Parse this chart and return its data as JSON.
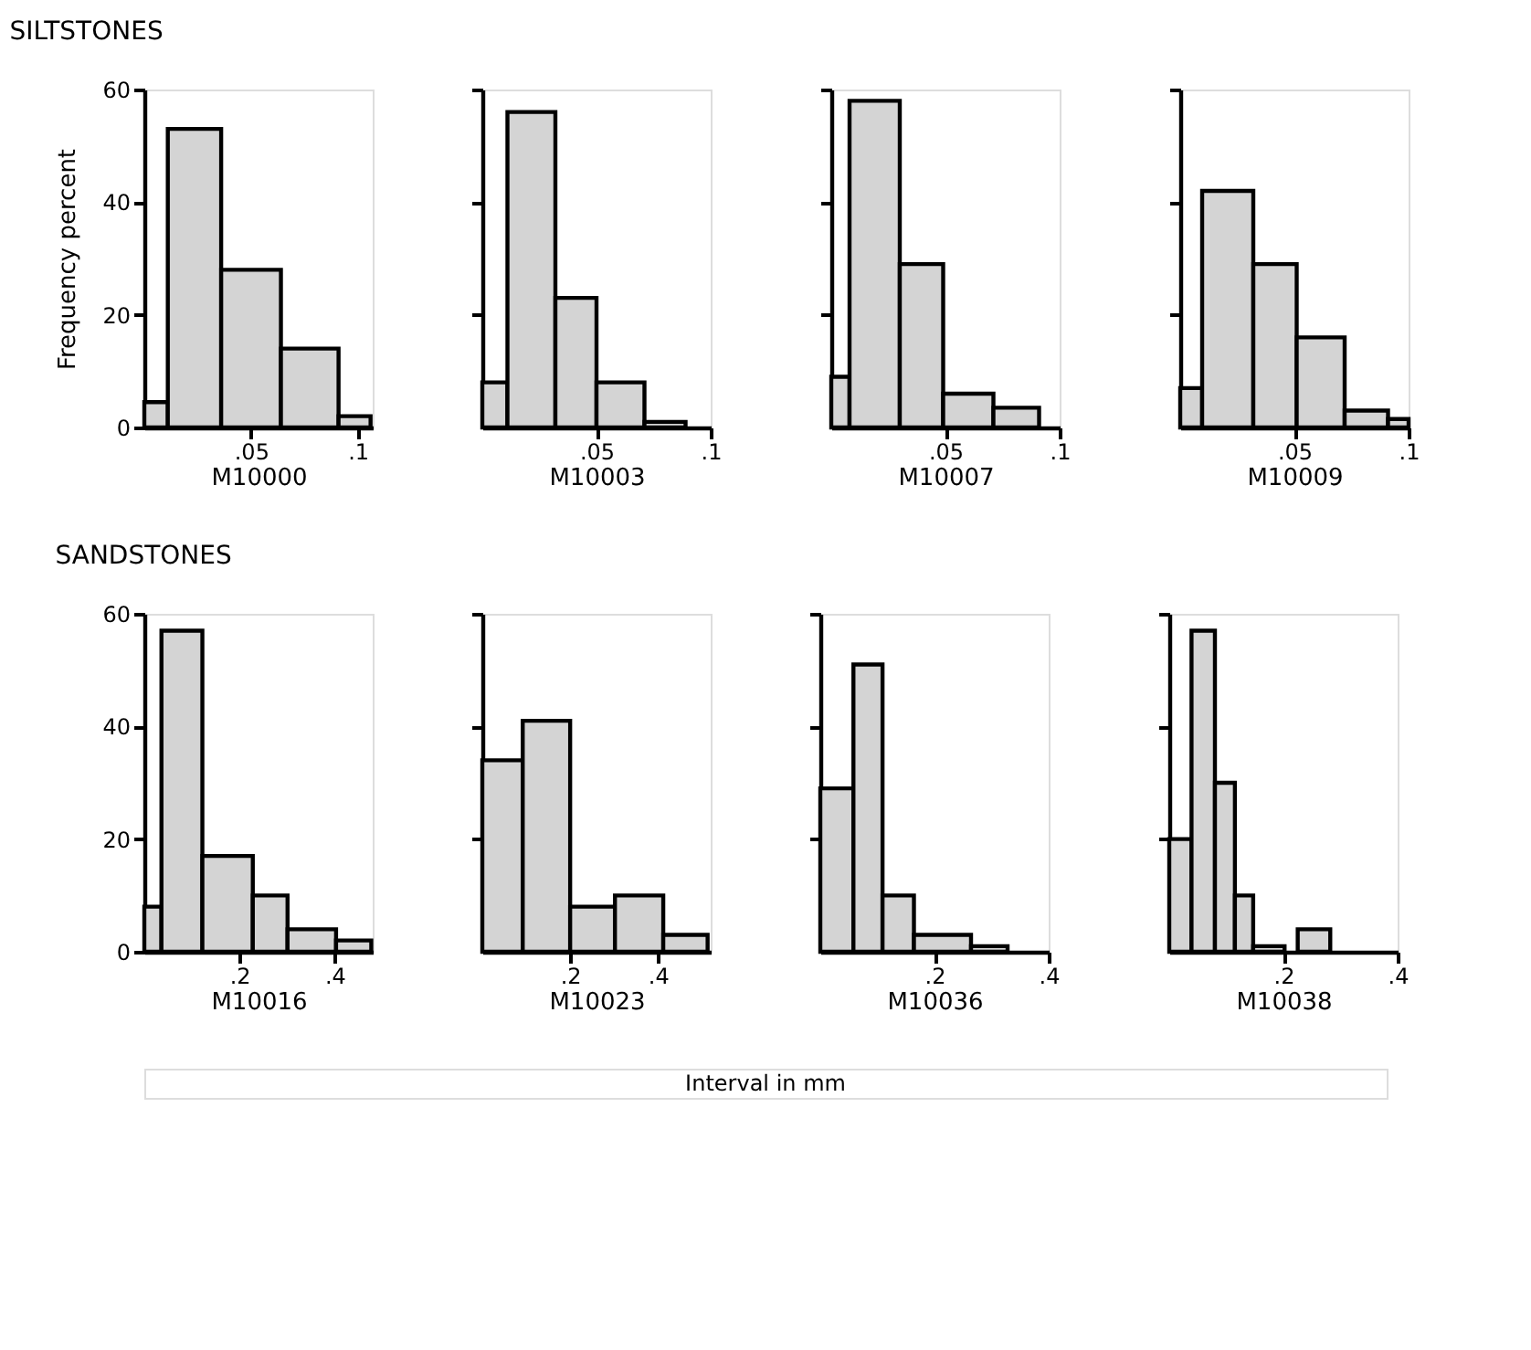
{
  "chart_data": [
    {
      "type": "histogram",
      "title": "SILTSTONES",
      "ylabel": "Frequency percent",
      "xlabel": "M10000",
      "bins": [
        0,
        0.011,
        0.036,
        0.064,
        0.091,
        0.106
      ],
      "values": [
        4.5,
        53,
        28,
        14,
        2
      ],
      "color": "#d4d4d4",
      "xlim": [
        0,
        0.107
      ],
      "xticks": [
        {
          "value": 0.05,
          "label": ".05"
        },
        {
          "value": 0.1,
          "label": ".1"
        }
      ],
      "ylim": [
        0,
        60
      ],
      "yticks": [
        0,
        20,
        40,
        60
      ],
      "grid": false
    },
    {
      "type": "histogram",
      "xlabel": "M10003",
      "bins": [
        0,
        0.011,
        0.032,
        0.05,
        0.071,
        0.089
      ],
      "values": [
        8,
        56,
        23,
        8,
        1
      ],
      "color": "#d4d4d4",
      "xlim": [
        0,
        0.1
      ],
      "xticks": [
        {
          "value": 0.05,
          "label": ".05"
        },
        {
          "value": 0.1,
          "label": ".1"
        }
      ],
      "ylim": [
        0,
        60
      ],
      "yticks": [
        20,
        40,
        60
      ],
      "tick_labels": "x",
      "grid": false
    },
    {
      "type": "histogram",
      "xlabel": "M10007",
      "bins": [
        0,
        0.008,
        0.03,
        0.049,
        0.071,
        0.091
      ],
      "values": [
        9,
        58,
        29,
        6,
        3.5
      ],
      "color": "#d4d4d4",
      "xlim": [
        0,
        0.1
      ],
      "xticks": [
        {
          "value": 0.05,
          "label": ".05"
        },
        {
          "value": 0.1,
          "label": ".1"
        }
      ],
      "ylim": [
        0,
        60
      ],
      "yticks": [
        20,
        40,
        60
      ],
      "tick_labels": "x",
      "grid": false
    },
    {
      "type": "histogram",
      "xlabel": "M10009",
      "bins": [
        0,
        0.0096,
        0.032,
        0.051,
        0.072,
        0.091,
        0.1
      ],
      "values": [
        7,
        42,
        29,
        16,
        3,
        1.5
      ],
      "color": "#d4d4d4",
      "xlim": [
        0,
        0.1
      ],
      "xticks": [
        {
          "value": 0.05,
          "label": ".05"
        },
        {
          "value": 0.1,
          "label": ".1"
        }
      ],
      "ylim": [
        0,
        60
      ],
      "yticks": [
        20,
        40,
        60
      ],
      "tick_labels": "x",
      "grid": false
    },
    {
      "type": "histogram",
      "title": "SANDSTONES",
      "annotations": [
        "Interval in mm"
      ],
      "xlabel": "M10016",
      "bins": [
        0,
        0.036,
        0.122,
        0.228,
        0.301,
        0.403,
        0.477
      ],
      "values": [
        8,
        57,
        17,
        10,
        4,
        2
      ],
      "color": "#d4d4d4",
      "xlim": [
        0,
        0.48
      ],
      "xticks": [
        {
          "value": 0.2,
          "label": ".2"
        },
        {
          "value": 0.4,
          "label": ".4"
        }
      ],
      "ylim": [
        0,
        60
      ],
      "yticks": [
        0,
        20,
        40,
        60
      ],
      "grid": false
    },
    {
      "type": "histogram",
      "xlabel": "M10023",
      "bins": [
        0,
        0.092,
        0.2,
        0.302,
        0.412,
        0.513
      ],
      "values": [
        34,
        41,
        8,
        10,
        3
      ],
      "color": "#d4d4d4",
      "xlim": [
        0,
        0.52
      ],
      "xticks": [
        {
          "value": 0.2,
          "label": ".2"
        },
        {
          "value": 0.4,
          "label": ".4"
        }
      ],
      "ylim": [
        0,
        60
      ],
      "yticks": [
        20,
        40,
        60
      ],
      "tick_labels": "x",
      "grid": false
    },
    {
      "type": "histogram",
      "xlabel": "M10036",
      "bins": [
        0,
        0.058,
        0.109,
        0.164,
        0.264,
        0.328
      ],
      "values": [
        29,
        51,
        10,
        3,
        1
      ],
      "color": "#d4d4d4",
      "xlim": [
        0,
        0.4
      ],
      "xticks": [
        {
          "value": 0.2,
          "label": ".2"
        },
        {
          "value": 0.4,
          "label": ".4"
        }
      ],
      "ylim": [
        0,
        60
      ],
      "yticks": [
        20,
        40,
        60
      ],
      "tick_labels": "x",
      "grid": false
    },
    {
      "type": "histogram",
      "xlabel": "M10038",
      "bins": [
        0,
        0.039,
        0.08,
        0.115,
        0.147,
        0.202,
        0.225,
        0.282
      ],
      "values": [
        20,
        57,
        30,
        10,
        1,
        null,
        4
      ],
      "color": "#d4d4d4",
      "xlim": [
        0,
        0.4
      ],
      "xticks": [
        {
          "value": 0.2,
          "label": ".2"
        },
        {
          "value": 0.4,
          "label": ".4"
        }
      ],
      "ylim": [
        0,
        60
      ],
      "yticks": [
        20,
        40,
        60
      ],
      "tick_labels": "x",
      "grid": false
    }
  ]
}
